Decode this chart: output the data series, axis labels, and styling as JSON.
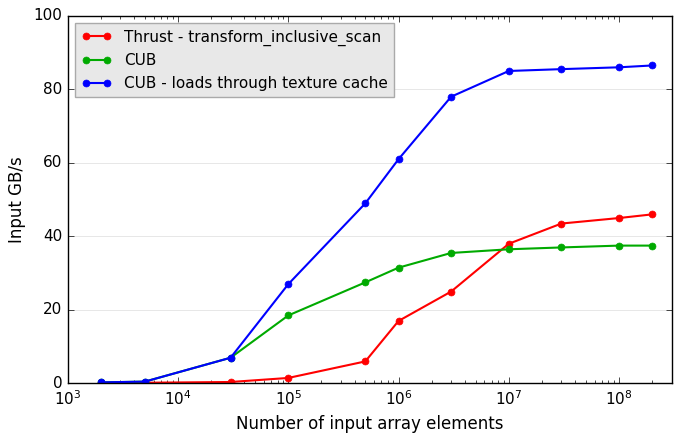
{
  "title": "",
  "xlabel": "Number of input array elements",
  "ylabel": "Input GB/s",
  "ylim": [
    0,
    100
  ],
  "xlim": [
    1000,
    300000000
  ],
  "background_color": "#ffffff",
  "series": [
    {
      "label": "Thrust - transform_inclusive_scan",
      "color": "#ff0000",
      "x": [
        2000,
        5000,
        30000,
        100000,
        500000,
        1000000,
        3000000,
        10000000,
        30000000,
        100000000,
        200000000
      ],
      "y": [
        0.15,
        0.2,
        0.4,
        1.5,
        6.0,
        17.0,
        25.0,
        38.0,
        43.5,
        45.0,
        46.0
      ]
    },
    {
      "label": "CUB",
      "color": "#00aa00",
      "x": [
        2000,
        5000,
        30000,
        100000,
        500000,
        1000000,
        3000000,
        10000000,
        30000000,
        100000000,
        200000000
      ],
      "y": [
        0.3,
        0.5,
        7.0,
        18.5,
        27.5,
        31.5,
        35.5,
        36.5,
        37.0,
        37.5,
        37.5
      ]
    },
    {
      "label": "CUB - loads through texture cache",
      "color": "#0000ff",
      "x": [
        2000,
        5000,
        30000,
        100000,
        500000,
        1000000,
        3000000,
        10000000,
        30000000,
        100000000,
        200000000
      ],
      "y": [
        0.3,
        0.5,
        7.0,
        27.0,
        49.0,
        61.0,
        78.0,
        85.0,
        85.5,
        86.0,
        86.5
      ]
    }
  ],
  "legend_loc": "upper left",
  "marker": "o",
  "markersize": 5,
  "linewidth": 1.5,
  "legend_fontsize": 11,
  "axis_fontsize": 12,
  "tick_fontsize": 11,
  "figure_facecolor": "#ffffff",
  "legend_facecolor": "#e8e8e8",
  "legend_edgecolor": "#aaaaaa"
}
